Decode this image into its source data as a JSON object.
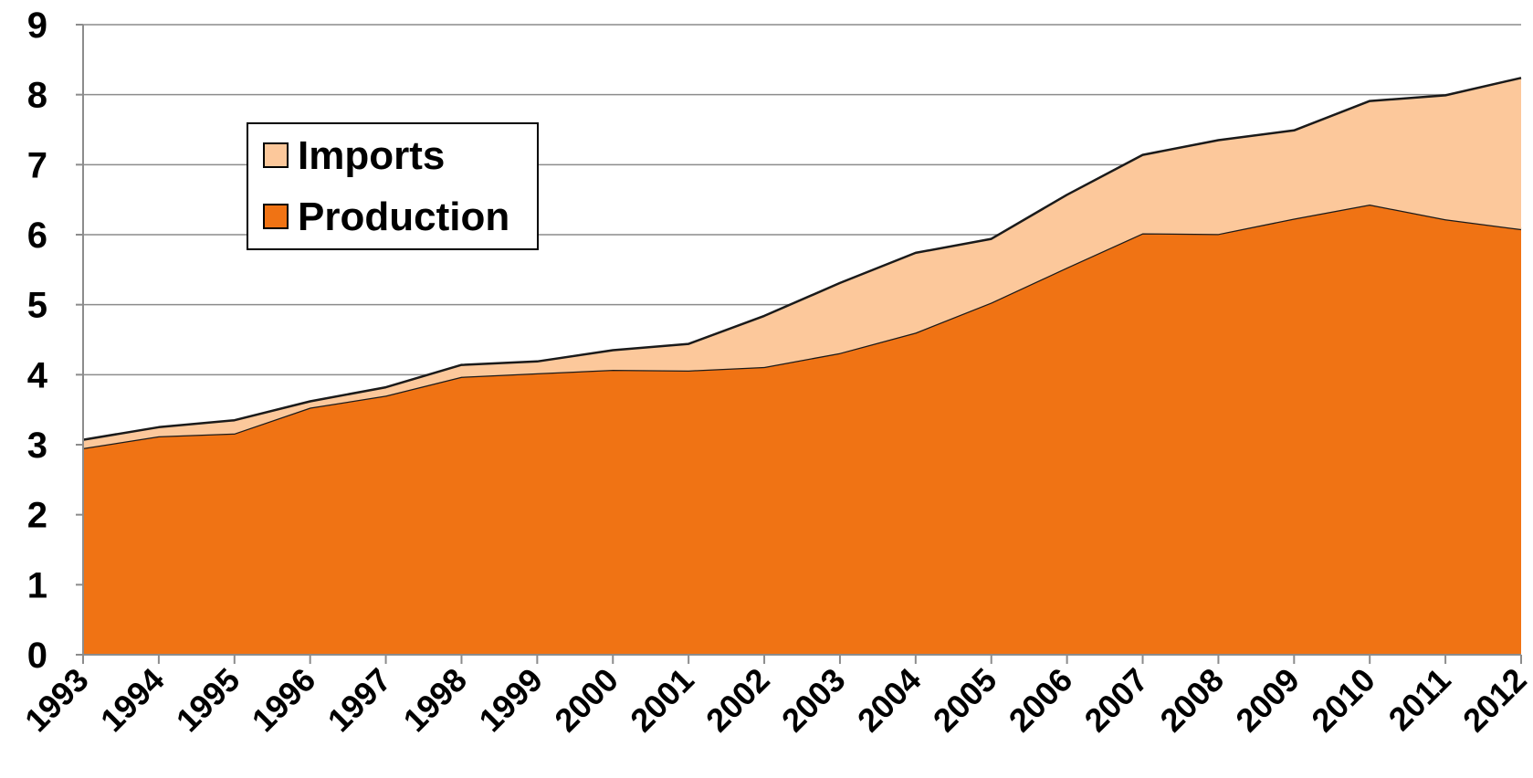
{
  "chart_data": {
    "type": "area",
    "stacked": true,
    "x": [
      "1993",
      "1994",
      "1995",
      "1996",
      "1997",
      "1998",
      "1999",
      "2000",
      "2001",
      "2002",
      "2003",
      "2004",
      "2005",
      "2006",
      "2007",
      "2008",
      "2009",
      "2010",
      "2011",
      "2012"
    ],
    "series": [
      {
        "name": "Production",
        "color": "#f07314",
        "values": [
          2.95,
          3.12,
          3.16,
          3.53,
          3.7,
          3.97,
          4.02,
          4.07,
          4.06,
          4.11,
          4.31,
          4.6,
          5.03,
          5.53,
          6.02,
          6.01,
          6.23,
          6.43,
          6.22,
          6.08
        ]
      },
      {
        "name": "Imports",
        "color": "#fcc89b",
        "values": [
          0.12,
          0.13,
          0.19,
          0.09,
          0.12,
          0.17,
          0.17,
          0.28,
          0.38,
          0.73,
          1.0,
          1.14,
          0.91,
          1.04,
          1.12,
          1.34,
          1.26,
          1.48,
          1.77,
          2.16
        ]
      }
    ],
    "ylim": [
      0,
      9
    ],
    "yticks": [
      0,
      1,
      2,
      3,
      4,
      5,
      6,
      7,
      8,
      9
    ],
    "grid": true,
    "legend_position": "top-left",
    "title": "",
    "xlabel": "",
    "ylabel": ""
  }
}
